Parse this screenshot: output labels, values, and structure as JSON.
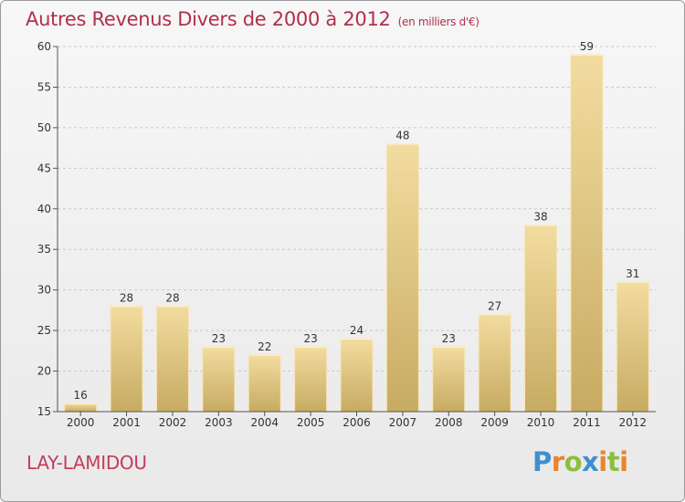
{
  "header": {
    "title": "Autres Revenus Divers de 2000 à 2012",
    "subtitle": "(en milliers d'€)"
  },
  "footer": {
    "place": "LAY-LAMIDOU",
    "brand_letters": [
      "P",
      "r",
      "o",
      "x",
      "i",
      "t",
      "i"
    ]
  },
  "colors": {
    "title": "#b0304a",
    "place": "#c43c5c",
    "bar_light": "#f3dca0",
    "bar_dark": "#c7ab62",
    "brand": [
      "#3e8fd0",
      "#e8842c",
      "#8dbf3f",
      "#3e8fd0",
      "#e8842c",
      "#8dbf3f",
      "#e8842c"
    ]
  },
  "chart_data": {
    "type": "bar",
    "categories": [
      "2000",
      "2001",
      "2002",
      "2003",
      "2004",
      "2005",
      "2006",
      "2007",
      "2008",
      "2009",
      "2010",
      "2011",
      "2012"
    ],
    "values": [
      16,
      28,
      28,
      23,
      22,
      23,
      24,
      48,
      23,
      27,
      38,
      59,
      31
    ],
    "data_labels": [
      "16",
      "28",
      "28",
      "23",
      "22",
      "23",
      "24",
      "48",
      "23",
      "27",
      "38",
      "59",
      "31"
    ],
    "ylim": [
      15,
      60
    ],
    "yticks": [
      15,
      20,
      25,
      30,
      35,
      40,
      45,
      50,
      55,
      60
    ],
    "ytick_labels": [
      "15",
      "20",
      "25",
      "30",
      "35",
      "40",
      "45",
      "50",
      "55",
      "60"
    ],
    "grid": "horizontal dashed",
    "xlabel": "",
    "ylabel": ""
  }
}
